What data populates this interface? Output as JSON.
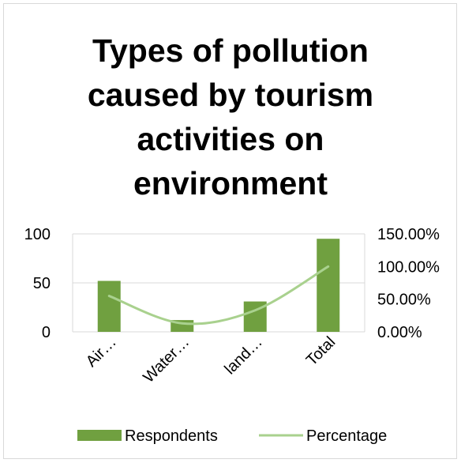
{
  "chart_data": {
    "type": "bar",
    "title": "Types of pollution caused by tourism activities on environment",
    "title_lines": [
      "Types of pollution",
      "caused by tourism",
      "activities on",
      "environment"
    ],
    "categories": [
      "Air…",
      "Water…",
      "land…",
      "Total"
    ],
    "series": [
      {
        "name": "Respondents",
        "type": "bar",
        "axis": "left",
        "color": "#70a040",
        "values": [
          52,
          12,
          31,
          95
        ]
      },
      {
        "name": "Percentage",
        "type": "line",
        "axis": "right",
        "color": "#a9d18e",
        "values": [
          0.55,
          0.13,
          0.33,
          1.0
        ]
      }
    ],
    "y_left": {
      "min": 0,
      "max": 100,
      "ticks": [
        0,
        50,
        100
      ],
      "tick_labels": [
        "0",
        "50",
        "100"
      ]
    },
    "y_right": {
      "min": 0,
      "max": 1.5,
      "ticks": [
        0,
        0.5,
        1.0,
        1.5
      ],
      "tick_labels": [
        "0.00%",
        "50.00%",
        "100.00%",
        "150.00%"
      ]
    },
    "grid": true,
    "legend_position": "bottom",
    "legend": [
      {
        "name": "Respondents",
        "kind": "bar"
      },
      {
        "name": "Percentage",
        "kind": "line"
      }
    ]
  }
}
